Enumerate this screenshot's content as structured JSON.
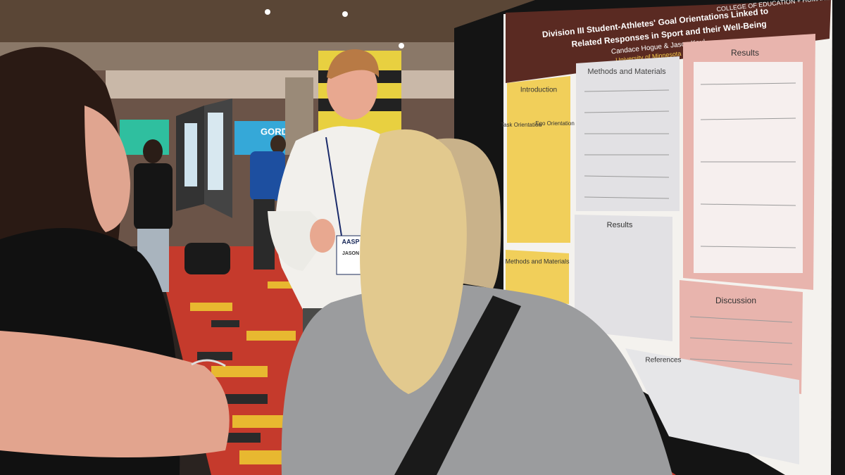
{
  "poster": {
    "title_line1": "Division III Student-Athletes' Goal Orientations Linked to",
    "title_line2": "Related Responses in Sport and their Well-Being",
    "authors": "Candace Hogue & Jason Kaul",
    "university": "University of Minnesota",
    "college": "COLLEGE OF EDUCATION + HUMAN DEVELOPMENT",
    "introduction": "Introduction",
    "task_orientation": "Task Orientation",
    "ego_orientation": "Ego Orientation",
    "methods": "Methods and Materials",
    "methods_lower": "Methods and Materials",
    "results_main": "Results",
    "results_middle": "Results",
    "discussion": "Discussion",
    "references": "References"
  },
  "badge": {
    "org": "AASP",
    "name": "JASON"
  },
  "background_sign": "GORDON"
}
